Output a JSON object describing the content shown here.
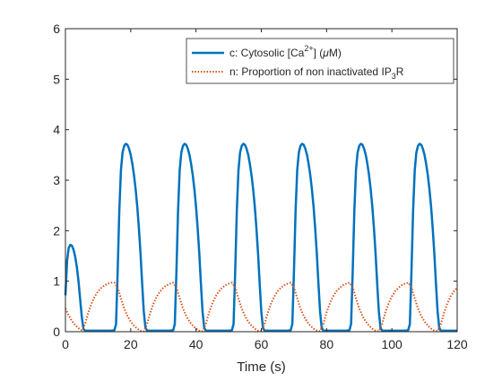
{
  "chart_data": {
    "type": "line",
    "xlabel": "Time (s)",
    "ylabel": "",
    "title": "",
    "xlim": [
      0,
      120
    ],
    "ylim": [
      0,
      6
    ],
    "xticks": [
      0,
      20,
      40,
      60,
      80,
      100,
      120
    ],
    "yticks": [
      0,
      1,
      2,
      3,
      4,
      5,
      6
    ],
    "grid": false,
    "legend_position": "top-right",
    "series": [
      {
        "name": "c: Cytosolic [Ca2+] (μM)",
        "color": "#0072BD",
        "style": "solid",
        "x": [
          0,
          0.5,
          1,
          1.5,
          2,
          2.5,
          3,
          3.5,
          4,
          4.5,
          5,
          5.5,
          6,
          10,
          14,
          15,
          15.5,
          16,
          16.5,
          17,
          17.5,
          18,
          18.5,
          19,
          19.5,
          20,
          20.5,
          21,
          21.5,
          22,
          22.5,
          23,
          23.5,
          24,
          24.5,
          25,
          28,
          32,
          33,
          33.5,
          34,
          34.5,
          35,
          35.5,
          36,
          36.5,
          37,
          37.5,
          38,
          38.5,
          39,
          39.5,
          40,
          40.5,
          41,
          41.5,
          42,
          42.5,
          43,
          46,
          50,
          51,
          51.5,
          52,
          52.5,
          53,
          53.5,
          54,
          54.5,
          55,
          55.5,
          56,
          56.5,
          57,
          57.5,
          58,
          58.5,
          59,
          59.5,
          60,
          60.5,
          61,
          64,
          68,
          69,
          69.5,
          70,
          70.5,
          71,
          71.5,
          72,
          72.5,
          73,
          73.5,
          74,
          74.5,
          75,
          75.5,
          76,
          76.5,
          77,
          77.5,
          78,
          78.5,
          79,
          82,
          86,
          87,
          87.5,
          88,
          88.5,
          89,
          89.5,
          90,
          90.5,
          91,
          91.5,
          92,
          92.5,
          93,
          93.5,
          94,
          94.5,
          95,
          95.5,
          96,
          96.5,
          97,
          100,
          104,
          105,
          105.5,
          106,
          106.5,
          107,
          107.5,
          108,
          108.5,
          109,
          109.5,
          110,
          110.5,
          111,
          111.5,
          112,
          112.5,
          113,
          113.5,
          114,
          114.5,
          115,
          118,
          120
        ],
        "y": [
          0.72,
          1.4,
          1.66,
          1.72,
          1.7,
          1.62,
          1.48,
          1.28,
          1.0,
          0.65,
          0.3,
          0.06,
          0.02,
          0.02,
          0.02,
          0.03,
          0.15,
          1.2,
          2.4,
          3.2,
          3.55,
          3.68,
          3.72,
          3.7,
          3.62,
          3.5,
          3.32,
          3.1,
          2.82,
          2.48,
          2.05,
          1.55,
          0.95,
          0.4,
          0.08,
          0.02,
          0.02,
          0.02,
          0.03,
          0.15,
          1.2,
          2.4,
          3.2,
          3.55,
          3.68,
          3.72,
          3.7,
          3.62,
          3.5,
          3.32,
          3.1,
          2.82,
          2.48,
          2.05,
          1.55,
          0.95,
          0.4,
          0.08,
          0.02,
          0.02,
          0.02,
          0.03,
          0.15,
          1.2,
          2.4,
          3.2,
          3.55,
          3.68,
          3.72,
          3.7,
          3.62,
          3.5,
          3.32,
          3.1,
          2.82,
          2.48,
          2.05,
          1.55,
          0.95,
          0.4,
          0.08,
          0.02,
          0.02,
          0.02,
          0.03,
          0.15,
          1.2,
          2.4,
          3.2,
          3.55,
          3.68,
          3.72,
          3.7,
          3.62,
          3.5,
          3.32,
          3.1,
          2.82,
          2.48,
          2.05,
          1.55,
          0.95,
          0.4,
          0.08,
          0.02,
          0.02,
          0.02,
          0.03,
          0.15,
          1.2,
          2.4,
          3.2,
          3.55,
          3.68,
          3.72,
          3.7,
          3.62,
          3.5,
          3.32,
          3.1,
          2.82,
          2.48,
          2.05,
          1.55,
          0.95,
          0.4,
          0.08,
          0.02,
          0.02,
          0.02,
          0.03,
          0.15,
          1.2,
          2.4,
          3.2,
          3.55,
          3.68,
          3.72,
          3.7,
          3.62,
          3.5,
          3.32,
          3.1,
          2.82,
          2.48,
          2.05,
          1.55,
          0.95,
          0.4,
          0.08,
          0.02,
          0.02,
          0.02
        ]
      },
      {
        "name": "n: Proportion of non inactivated IP3R",
        "color": "#D95319",
        "style": "dotted",
        "x": [
          0,
          1,
          2,
          3,
          4,
          5,
          6,
          7,
          8,
          9,
          10,
          11,
          12,
          13,
          14,
          15,
          16,
          17,
          18,
          19,
          20,
          21,
          22,
          23,
          24,
          25,
          26,
          27,
          28,
          29,
          30,
          31,
          32,
          33,
          34,
          35,
          36,
          37,
          38,
          39,
          40,
          41,
          42,
          43,
          44,
          45,
          46,
          47,
          48,
          49,
          50,
          51,
          52,
          53,
          54,
          55,
          56,
          57,
          58,
          59,
          60,
          61,
          62,
          63,
          64,
          65,
          66,
          67,
          68,
          69,
          70,
          71,
          72,
          73,
          74,
          75,
          76,
          77,
          78,
          79,
          80,
          81,
          82,
          83,
          84,
          85,
          86,
          87,
          88,
          89,
          90,
          91,
          92,
          93,
          94,
          95,
          96,
          97,
          98,
          99,
          100,
          101,
          102,
          103,
          104,
          105,
          106,
          107,
          108,
          109,
          110,
          111,
          112,
          113,
          114,
          115,
          116,
          117,
          118,
          119,
          120
        ],
        "y": [
          0.46,
          0.32,
          0.21,
          0.13,
          0.07,
          0.03,
          0.15,
          0.38,
          0.56,
          0.7,
          0.8,
          0.87,
          0.92,
          0.95,
          0.97,
          0.97,
          0.88,
          0.66,
          0.46,
          0.31,
          0.2,
          0.12,
          0.06,
          0.02,
          0.01,
          0.15,
          0.38,
          0.56,
          0.7,
          0.8,
          0.87,
          0.92,
          0.95,
          0.97,
          0.88,
          0.66,
          0.46,
          0.31,
          0.2,
          0.12,
          0.06,
          0.02,
          0.01,
          0.15,
          0.38,
          0.56,
          0.7,
          0.8,
          0.87,
          0.92,
          0.95,
          0.97,
          0.88,
          0.66,
          0.46,
          0.31,
          0.2,
          0.12,
          0.06,
          0.02,
          0.01,
          0.15,
          0.38,
          0.56,
          0.7,
          0.8,
          0.87,
          0.92,
          0.95,
          0.97,
          0.88,
          0.66,
          0.46,
          0.31,
          0.2,
          0.12,
          0.06,
          0.02,
          0.01,
          0.15,
          0.38,
          0.56,
          0.7,
          0.8,
          0.87,
          0.92,
          0.95,
          0.97,
          0.88,
          0.66,
          0.46,
          0.31,
          0.2,
          0.12,
          0.06,
          0.02,
          0.01,
          0.15,
          0.38,
          0.56,
          0.7,
          0.8,
          0.87,
          0.92,
          0.95,
          0.97,
          0.88,
          0.66,
          0.46,
          0.31,
          0.2,
          0.12,
          0.06,
          0.02,
          0.01,
          0.15,
          0.38,
          0.56,
          0.7,
          0.8,
          0.87
        ]
      }
    ]
  },
  "legend": {
    "c_prefix": "c: Cytosolic [Ca",
    "c_sup": "2+",
    "c_suffix": "] (",
    "c_mu": "μ",
    "c_end": "M)",
    "n_prefix": "n: Proportion of non inactivated IP",
    "n_sub": "3",
    "n_end": "R"
  }
}
